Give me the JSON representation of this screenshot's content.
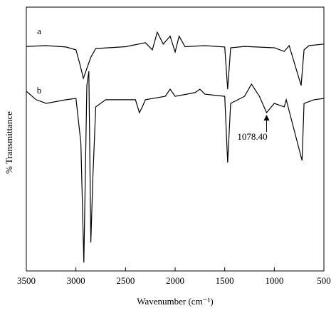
{
  "chart_data": {
    "type": "line",
    "xlabel": "Wavenumber (cm⁻¹)",
    "ylabel": "% Transmittance",
    "xlim": [
      3500,
      500
    ],
    "xticks": [
      3500,
      3000,
      2500,
      2000,
      1500,
      1000,
      500
    ],
    "ylim": [
      0,
      100
    ],
    "curve_labels": [
      "a",
      "b"
    ],
    "annotation": {
      "text": "1078.40",
      "x": 1078
    },
    "series": [
      {
        "name": "a",
        "color": "#000000",
        "x": [
          3500,
          3300,
          3100,
          3000,
          2960,
          2925,
          2850,
          2800,
          2500,
          2300,
          2230,
          2180,
          2120,
          2050,
          2000,
          1960,
          1900,
          1700,
          1500,
          1470,
          1440,
          1300,
          1000,
          900,
          850,
          730,
          700,
          650,
          500
        ],
        "values": [
          85.1,
          85.4,
          84.9,
          83.8,
          78.4,
          73,
          81,
          84.3,
          85,
          86.5,
          83.8,
          90.5,
          86,
          89,
          83,
          89,
          85,
          85.4,
          84.9,
          68.9,
          84.6,
          85.1,
          84.6,
          83.2,
          85.4,
          70.3,
          83.8,
          85.4,
          86
        ]
      },
      {
        "name": "b",
        "color": "#000000",
        "x": [
          3500,
          3400,
          3300,
          3100,
          3000,
          2950,
          2920,
          2890,
          2870,
          2850,
          2830,
          2800,
          2700,
          2400,
          2360,
          2330,
          2300,
          2100,
          2050,
          2000,
          1800,
          1750,
          1700,
          1500,
          1470,
          1440,
          1300,
          1230,
          1150,
          1078,
          1000,
          900,
          880,
          720,
          700,
          600,
          500
        ],
        "values": [
          68.1,
          64.9,
          63.5,
          64.9,
          65.4,
          48.6,
          3.2,
          70.3,
          75.7,
          10.8,
          35.1,
          62.2,
          64.9,
          64.9,
          60,
          62.2,
          64.9,
          66.2,
          68.9,
          66.2,
          67.6,
          68.9,
          67,
          66.2,
          41.1,
          63.5,
          66.2,
          70.8,
          66.2,
          60,
          63.5,
          62.2,
          64.9,
          41.9,
          63.5,
          64.9,
          65.4
        ]
      }
    ]
  }
}
